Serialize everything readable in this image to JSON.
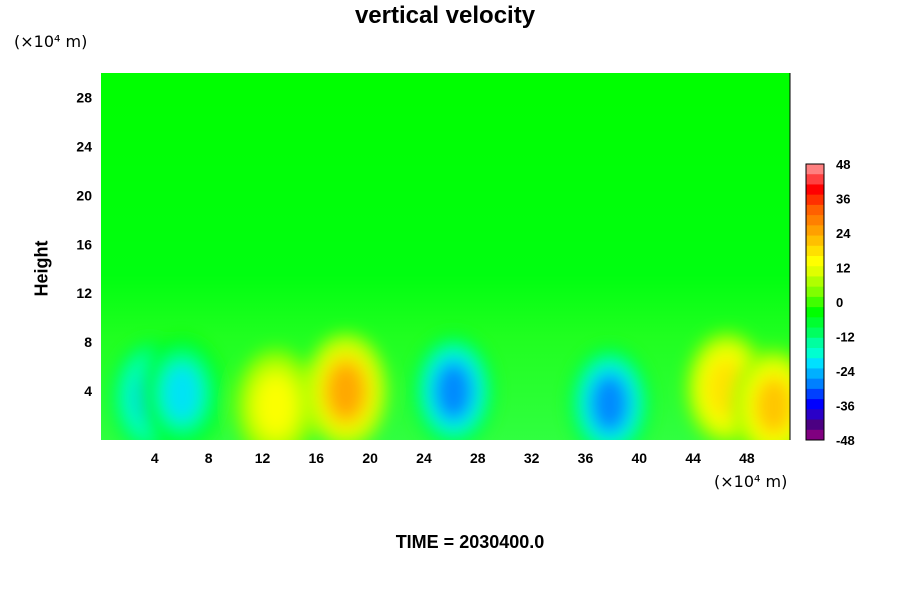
{
  "chart_data": {
    "type": "heatmap",
    "title": "vertical velocity",
    "xlabel": "",
    "ylabel": "Height",
    "x_unit": "(×10⁴ m)",
    "y_unit": "(×10⁴ m)",
    "x_ticks": [
      4,
      8,
      12,
      16,
      20,
      24,
      28,
      32,
      36,
      40,
      44,
      48
    ],
    "y_ticks": [
      4,
      8,
      12,
      16,
      20,
      24,
      28
    ],
    "xlim": [
      0,
      51.2
    ],
    "ylim": [
      0,
      30
    ],
    "grid": false,
    "colorbar": {
      "ticks": [
        48,
        36,
        24,
        12,
        0,
        -12,
        -24,
        -36,
        -48
      ],
      "range": [
        -48,
        48
      ],
      "colors": [
        "#800080",
        "#4b0082",
        "#2a00c8",
        "#0000ff",
        "#0040ff",
        "#0080ff",
        "#00b0ff",
        "#00e0ff",
        "#00ffd0",
        "#00ffa0",
        "#00ff60",
        "#00ff30",
        "#00ff00",
        "#40ff00",
        "#80ff00",
        "#b0ff00",
        "#e0ff00",
        "#ffff00",
        "#ffe000",
        "#ffc000",
        "#ffa000",
        "#ff8000",
        "#ff6000",
        "#ff3000",
        "#ff0000",
        "#ff4040",
        "#ff8080"
      ]
    },
    "features": [
      {
        "x": 3.8,
        "y": 3.5,
        "value": -26
      },
      {
        "x": 6.0,
        "y": 3.8,
        "value": -22
      },
      {
        "x": 13.0,
        "y": 2.8,
        "value": 16
      },
      {
        "x": 18.2,
        "y": 4.0,
        "value": 24
      },
      {
        "x": 26.2,
        "y": 4.0,
        "value": -28
      },
      {
        "x": 37.8,
        "y": 3.0,
        "value": -30
      },
      {
        "x": 46.5,
        "y": 4.2,
        "value": 20
      },
      {
        "x": 50.0,
        "y": 2.8,
        "value": 22
      }
    ],
    "background_value": 0
  },
  "footer": {
    "time_text": "TIME = 2030400.0"
  }
}
